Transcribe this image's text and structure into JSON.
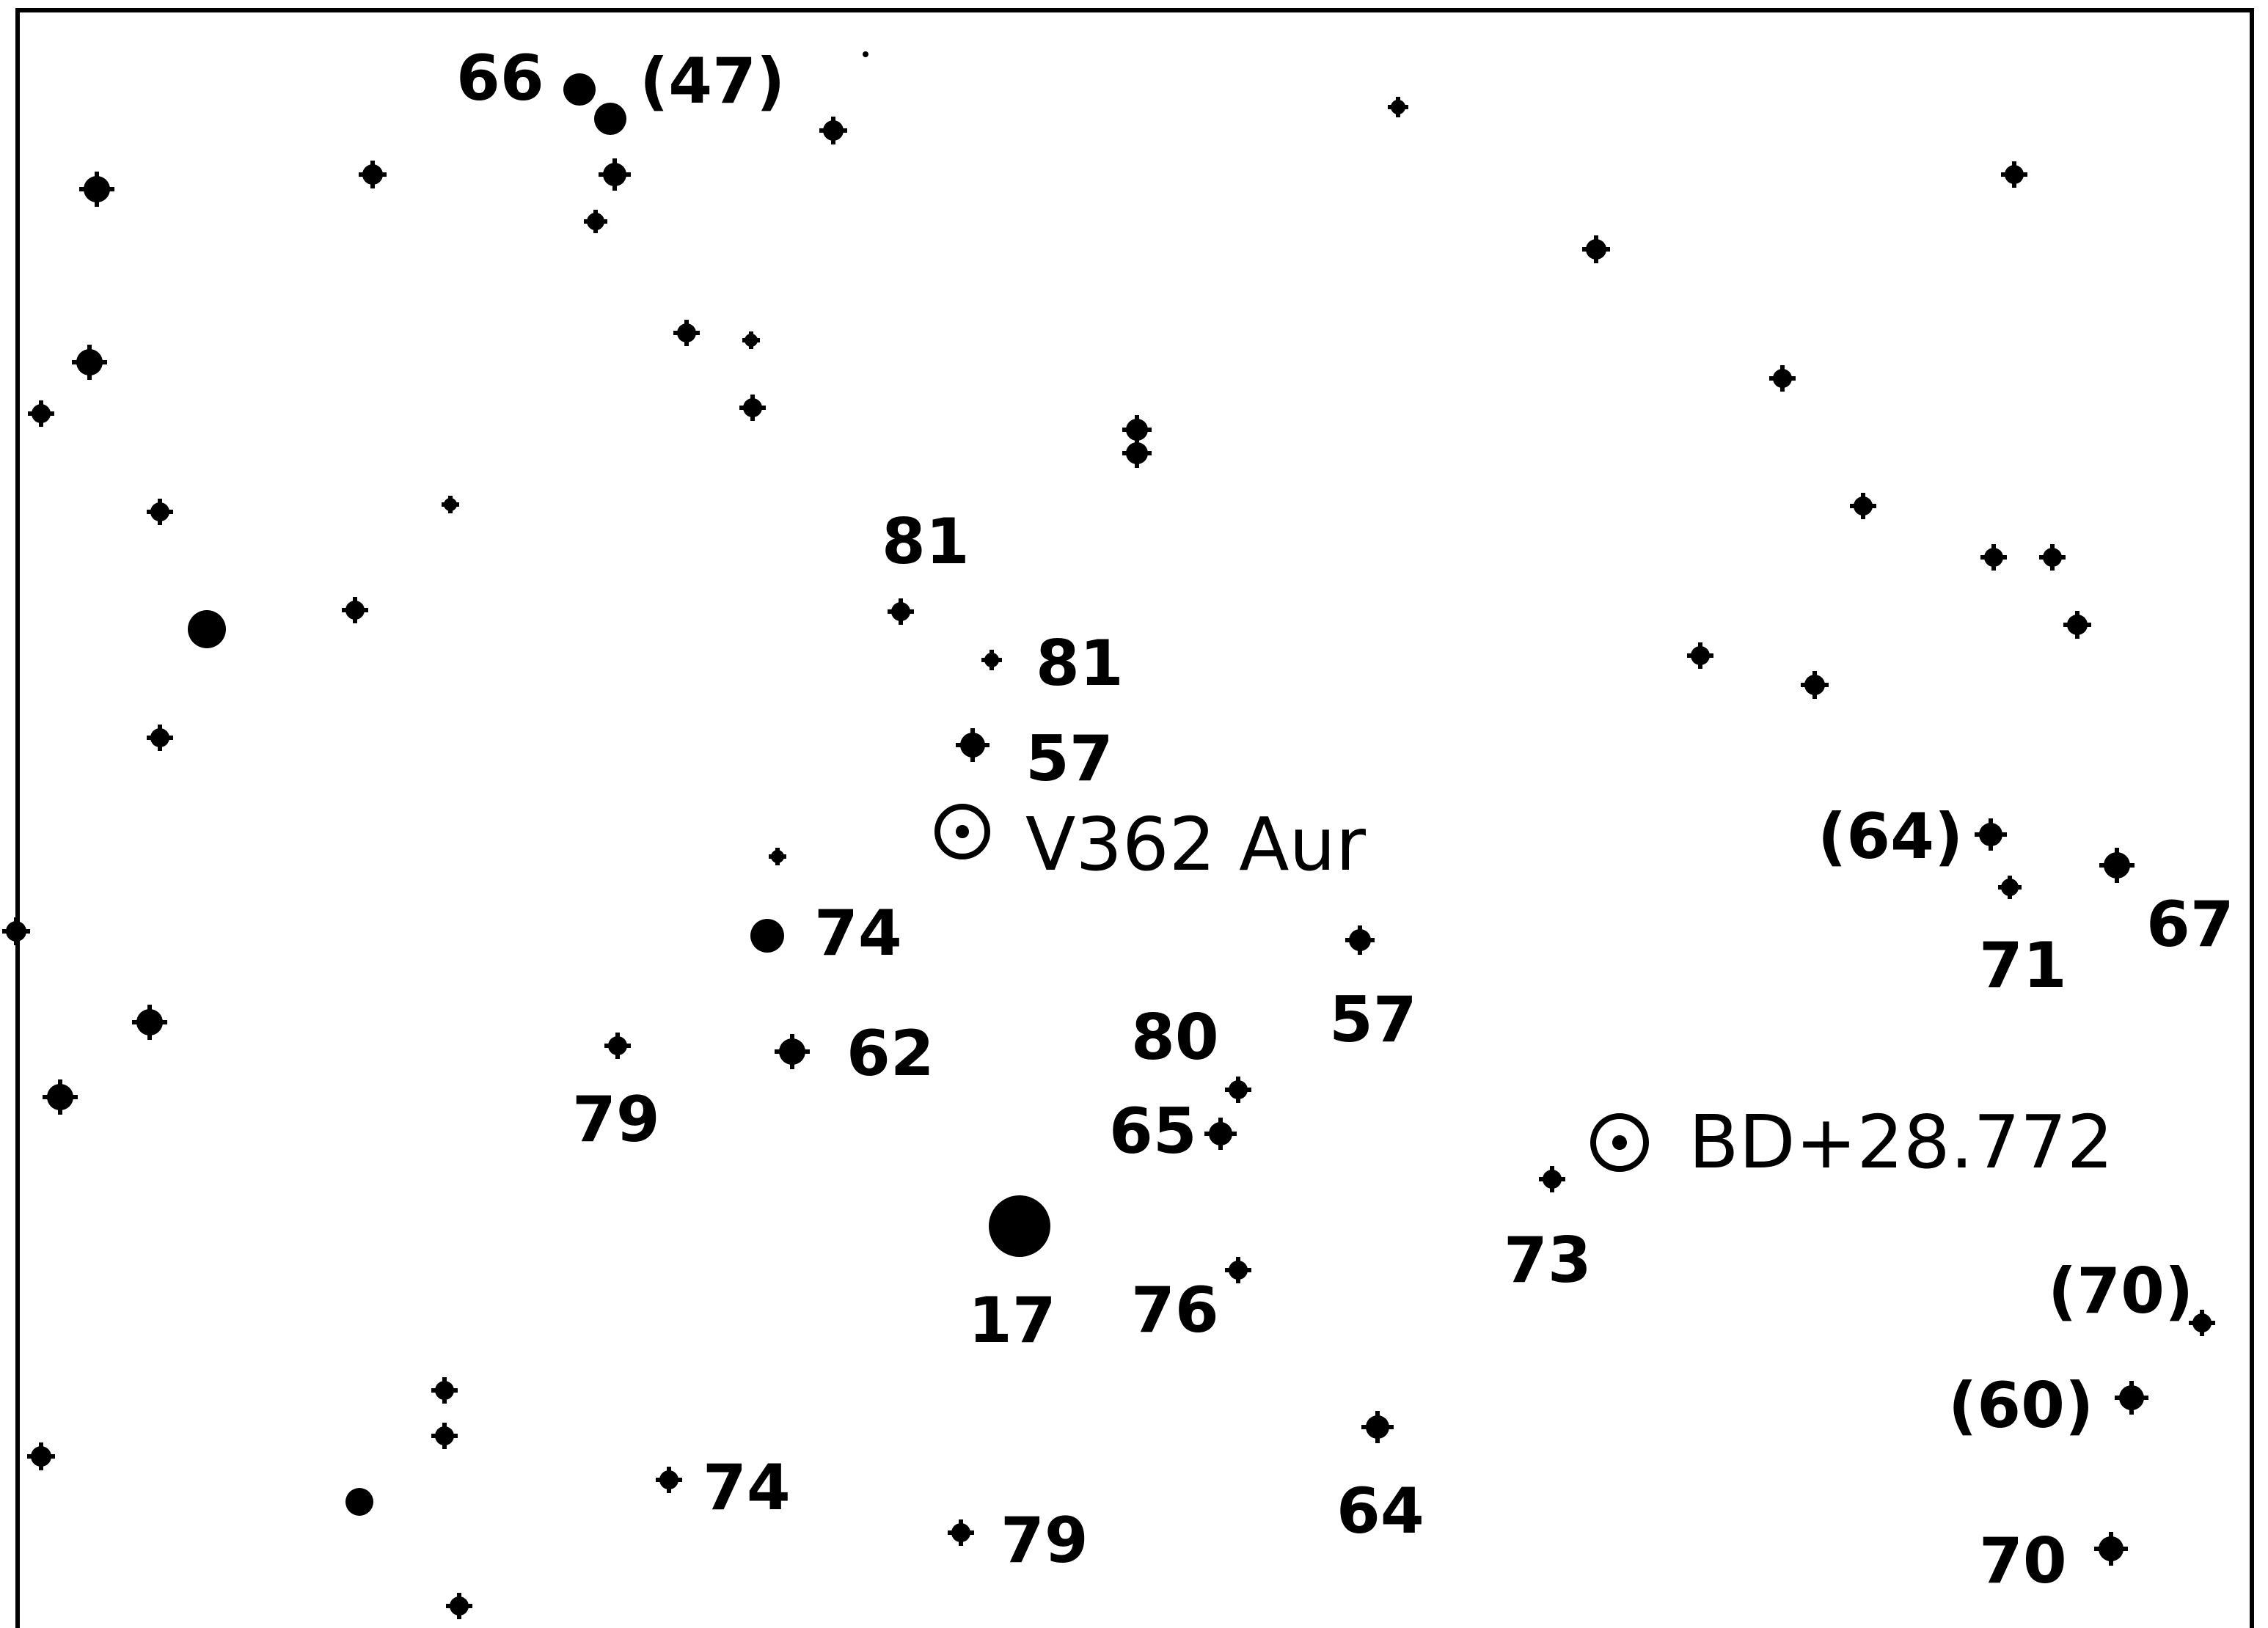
{
  "chart": {
    "ink_color": "#000000",
    "background_color": "#ffffff",
    "labels": {
      "l66": "66",
      "l47": "(47)",
      "l81a": "81",
      "l81b": "81",
      "l57a": "57",
      "l74a": "74",
      "l62": "62",
      "l79a": "79",
      "l80": "80",
      "l65": "65",
      "l57b": "57",
      "l17": "17",
      "l76": "76",
      "l73": "73",
      "l64a": "(64)",
      "l71": "71",
      "l67": "67",
      "l70a": "(70)",
      "l60": "(60)",
      "l70b": "70",
      "l64b": "64",
      "l74b": "74",
      "l79b": "79"
    },
    "targets": {
      "v362": "V362 Aur",
      "bd": "BD+28.772"
    }
  }
}
